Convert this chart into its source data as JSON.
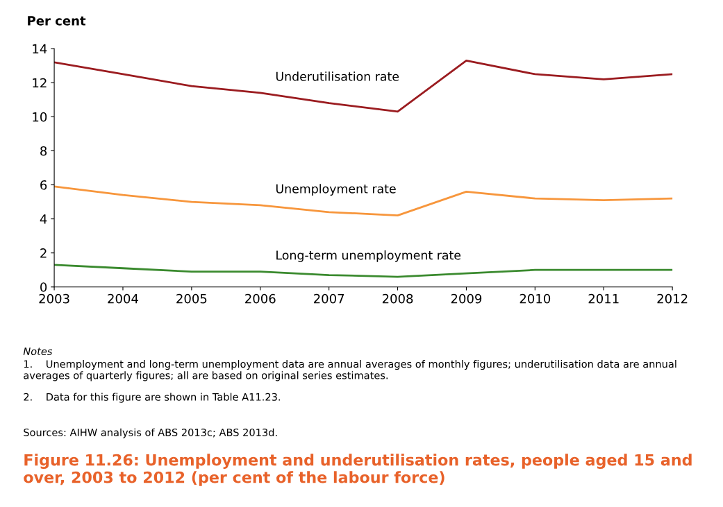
{
  "chart_data": {
    "type": "line",
    "title": "Figure 11.26: Unemployment and underutilisation rates, people aged 15 and over, 2003 to 2012 (per cent of the labour force)",
    "ylabel": "Per cent",
    "x": [
      2003,
      2004,
      2005,
      2006,
      2007,
      2008,
      2009,
      2010,
      2011,
      2012
    ],
    "series": [
      {
        "name": "Underutilisation rate",
        "color": "#9b1c20",
        "values": [
          13.2,
          12.5,
          11.8,
          11.4,
          10.8,
          10.3,
          13.3,
          12.5,
          12.2,
          12.5
        ]
      },
      {
        "name": "Unemployment rate",
        "color": "#f7963c",
        "values": [
          5.9,
          5.4,
          5.0,
          4.8,
          4.4,
          4.2,
          5.6,
          5.2,
          5.1,
          5.2
        ]
      },
      {
        "name": "Long-term unemployment rate",
        "color": "#3a8a2e",
        "values": [
          1.3,
          1.1,
          0.9,
          0.9,
          0.7,
          0.6,
          0.8,
          1.0,
          1.0,
          1.0
        ]
      }
    ],
    "xlim": [
      2003,
      2012
    ],
    "xticks": [
      2003,
      2004,
      2005,
      2006,
      2007,
      2008,
      2009,
      2010,
      2011,
      2012
    ],
    "ylim": [
      0,
      14
    ],
    "yticks": [
      0,
      2,
      4,
      6,
      8,
      10,
      12,
      14
    ],
    "grid": false,
    "legend": false,
    "marker": "none",
    "line_style": "solid",
    "annotations": [
      "Notes",
      "1.    Unemployment and long-term unemployment data are annual averages of monthly figures; underutilisation data are annual averages of quarterly figures; all are based on original series estimates.",
      "2.    Data for this figure are shown in Table A11.23.",
      "Sources: AIHW analysis of ABS 2013c; ABS 2013d."
    ]
  }
}
